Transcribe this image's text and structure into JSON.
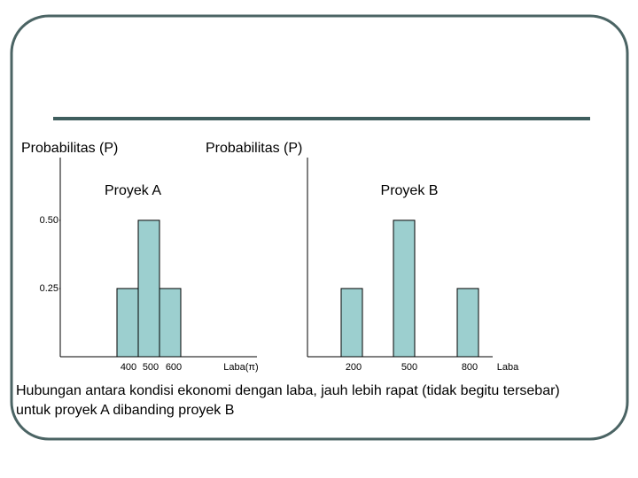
{
  "chart_data": [
    {
      "type": "bar",
      "y_label": "Probabilitas (P)",
      "title": "Proyek A",
      "x_label": "Laba(π)",
      "categories": [
        "400",
        "500",
        "600"
      ],
      "values": [
        0.25,
        0.5,
        0.25
      ],
      "color": "#9ccfcf",
      "ylim": [
        0,
        0.73
      ],
      "yticks": [
        0.25,
        {
          "value": 0.5,
          "label": "0.50"
        }
      ]
    },
    {
      "type": "bar",
      "y_label": "Probabilitas (P)",
      "title": "Proyek B",
      "x_label": "Laba",
      "categories": [
        "200",
        "500",
        "800"
      ],
      "values": [
        0.25,
        0.5,
        0.25
      ],
      "color": "#9ccfcf",
      "ylim": [
        0,
        0.73
      ]
    }
  ],
  "caption": [
    "Hubungan antara kondisi ekonomi dengan laba, jauh lebih rapat (tidak begitu tersebar)",
    "untuk proyek A dibanding proyek B"
  ]
}
